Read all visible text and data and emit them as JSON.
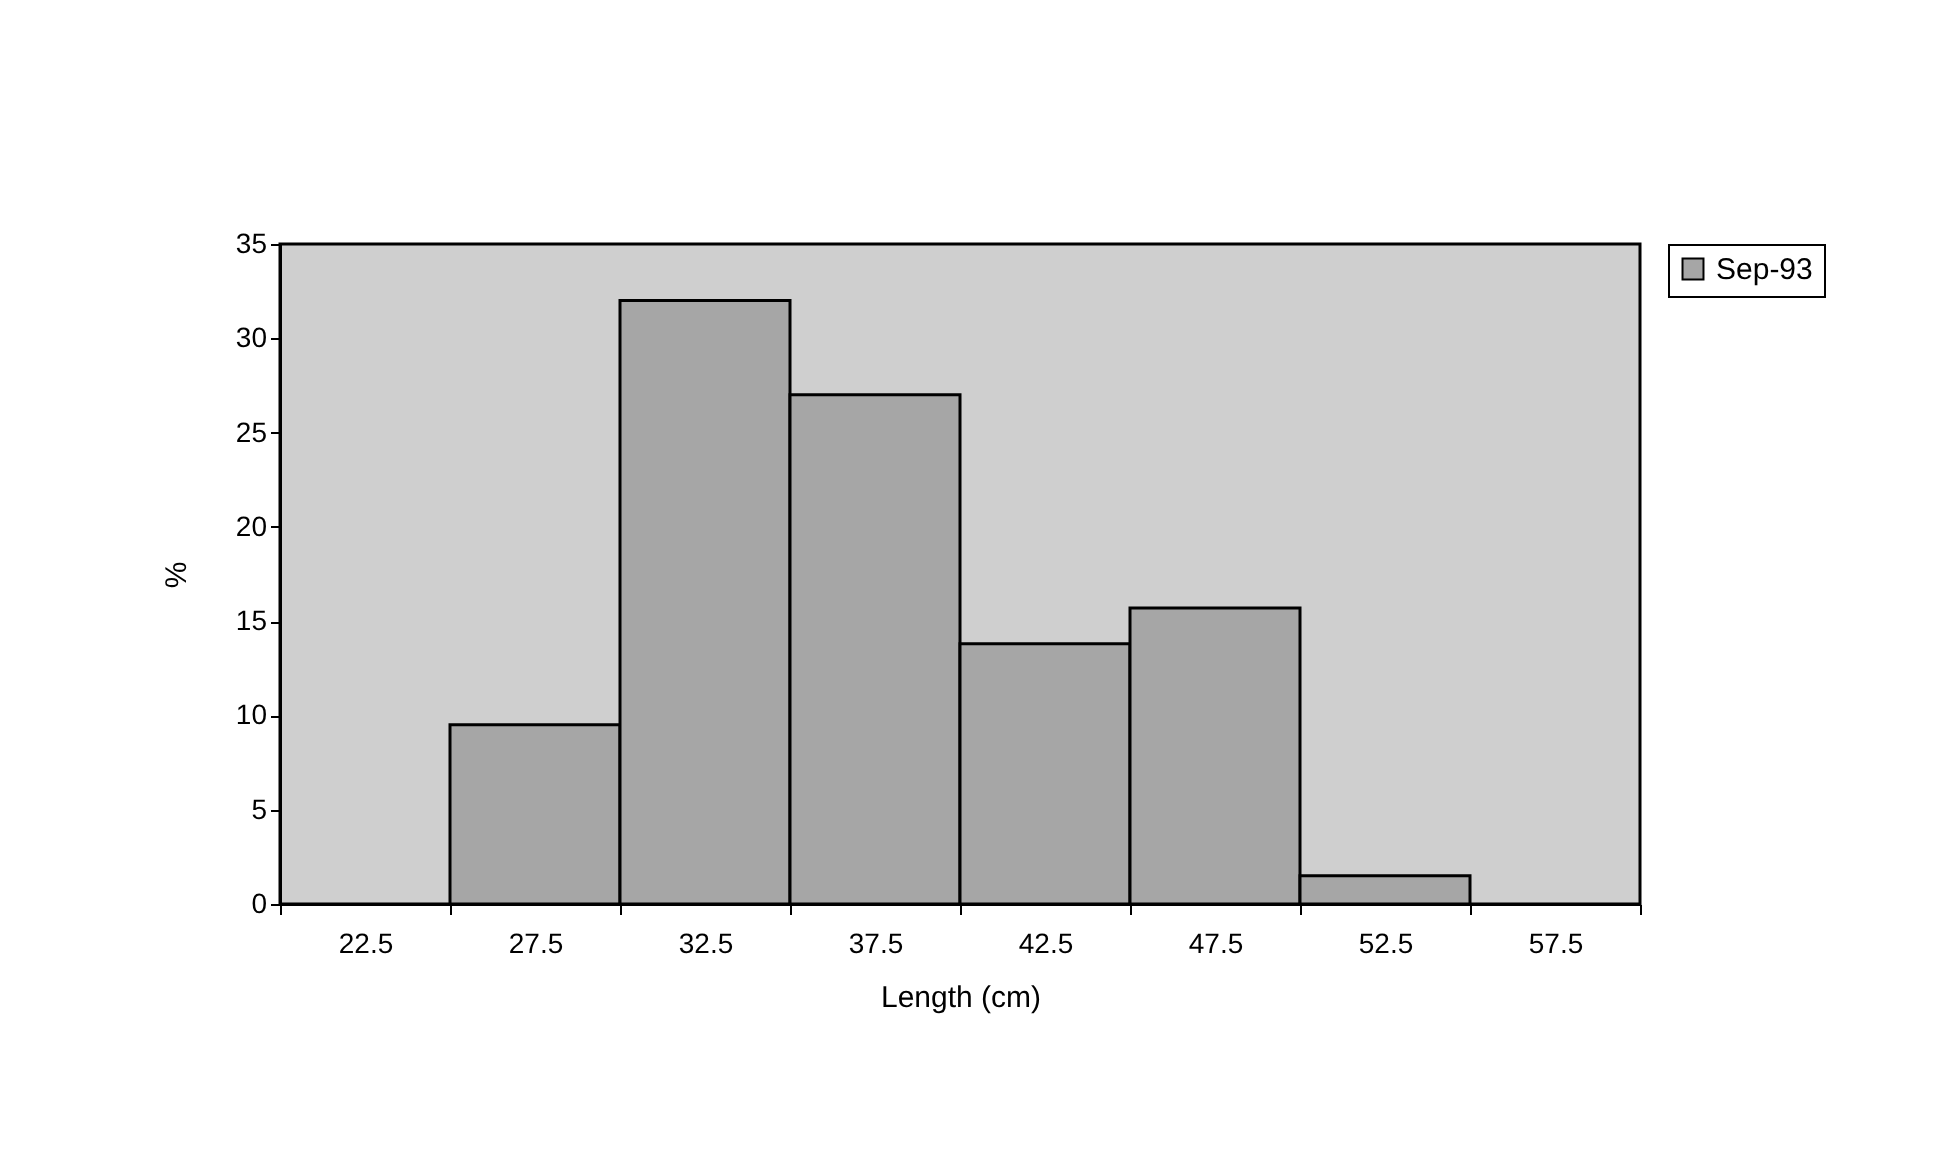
{
  "chart_data": {
    "type": "bar",
    "xlabel": "Length (cm)",
    "ylabel": "%",
    "categories": [
      "22.5",
      "27.5",
      "32.5",
      "37.5",
      "42.5",
      "47.5",
      "52.5",
      "57.5"
    ],
    "series": [
      {
        "name": "Sep-93",
        "color": "#a6a6a6",
        "values": [
          0,
          9.5,
          32,
          27,
          13.8,
          15.7,
          1.5,
          0
        ]
      }
    ],
    "ylim": [
      0,
      35
    ],
    "yticks": [
      0,
      5,
      10,
      15,
      20,
      25,
      30,
      35
    ],
    "grid": false,
    "legend": "right"
  }
}
